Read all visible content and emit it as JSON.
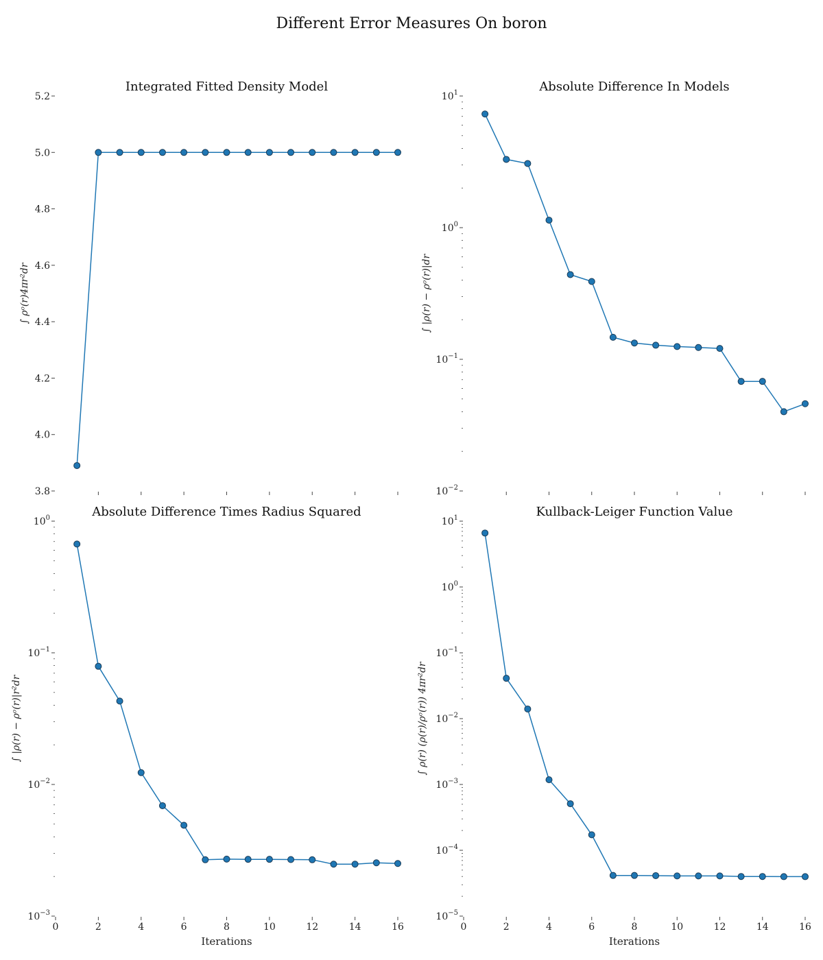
{
  "suptitle": "Different Error Measures On boron",
  "style": {
    "line_color": "#1f77b4",
    "marker_color": "#1f77b4",
    "marker_edge": "#1a3a55",
    "axis_color": "#444444"
  },
  "chart_data": [
    {
      "type": "line",
      "title": "Integrated Fitted Density Model",
      "xlabel": "",
      "ylabel": "∫ ρᵒ(r)4πr²dr",
      "yscale": "linear",
      "xlim": [
        0,
        16
      ],
      "ylim": [
        3.8,
        5.2
      ],
      "xticks": [
        2,
        4,
        6,
        8,
        10,
        12,
        14,
        16
      ],
      "xtick_labels": [],
      "yticks": [
        3.8,
        4.0,
        4.2,
        4.4,
        4.6,
        4.8,
        5.0,
        5.2
      ],
      "ytick_labels": [
        "3.8",
        "4.0",
        "4.2",
        "4.4",
        "4.6",
        "4.8",
        "5.0",
        "5.2"
      ],
      "x": [
        1,
        2,
        3,
        4,
        5,
        6,
        7,
        8,
        9,
        10,
        11,
        12,
        13,
        14,
        15,
        16
      ],
      "y": [
        3.89,
        5.0,
        5.0,
        5.0,
        5.0,
        5.0,
        5.0,
        5.0,
        5.0,
        5.0,
        5.0,
        5.0,
        5.0,
        5.0,
        5.0,
        5.0
      ]
    },
    {
      "type": "line",
      "title": "Absolute Difference In Models",
      "xlabel": "",
      "ylabel": "∫ |ρ(r) − ρᵒ(r)|dr",
      "yscale": "log",
      "xlim": [
        0,
        16
      ],
      "ylim": [
        0.01,
        10
      ],
      "xticks": [
        2,
        4,
        6,
        8,
        10,
        12,
        14,
        16
      ],
      "xtick_labels": [],
      "yticks": [
        0.01,
        0.1,
        1,
        10
      ],
      "ytick_labels": [
        {
          "base": "10",
          "exp": "−2"
        },
        {
          "base": "10",
          "exp": "−1"
        },
        {
          "base": "10",
          "exp": "0"
        },
        {
          "base": "10",
          "exp": "1"
        }
      ],
      "x": [
        1,
        2,
        3,
        4,
        5,
        6,
        7,
        8,
        9,
        10,
        11,
        12,
        13,
        14,
        15,
        16
      ],
      "y": [
        7.3,
        3.3,
        3.07,
        1.14,
        0.44,
        0.39,
        0.147,
        0.133,
        0.128,
        0.125,
        0.123,
        0.121,
        0.068,
        0.068,
        0.04,
        0.046
      ]
    },
    {
      "type": "line",
      "title": "Absolute Difference Times Radius Squared",
      "xlabel": "Iterations",
      "ylabel": "∫ |ρ(r) − ρᵒ(r)|r²dr",
      "yscale": "log",
      "xlim": [
        0,
        16
      ],
      "ylim": [
        0.001,
        1
      ],
      "xticks": [
        0,
        2,
        4,
        6,
        8,
        10,
        12,
        14,
        16
      ],
      "xtick_labels": [
        "0",
        "2",
        "4",
        "6",
        "8",
        "10",
        "12",
        "14",
        "16"
      ],
      "yticks": [
        0.001,
        0.01,
        0.1,
        1
      ],
      "ytick_labels": [
        {
          "base": "10",
          "exp": "−3"
        },
        {
          "base": "10",
          "exp": "−2"
        },
        {
          "base": "10",
          "exp": "−1"
        },
        {
          "base": "10",
          "exp": "0"
        }
      ],
      "x": [
        1,
        2,
        3,
        4,
        5,
        6,
        7,
        8,
        9,
        10,
        11,
        12,
        13,
        14,
        15,
        16
      ],
      "y": [
        0.67,
        0.079,
        0.043,
        0.0123,
        0.0069,
        0.0049,
        0.00268,
        0.00271,
        0.0027,
        0.0027,
        0.00269,
        0.00268,
        0.00248,
        0.00248,
        0.00254,
        0.00251
      ]
    },
    {
      "type": "line",
      "title": "Kullback-Leiger Function Value",
      "xlabel": "Iterations",
      "ylabel": "∫ ρ(r) (ρ(r)/ρᵒ(r)) 4πr²dr",
      "yscale": "log",
      "xlim": [
        0,
        16
      ],
      "ylim": [
        1e-05,
        10
      ],
      "xticks": [
        0,
        2,
        4,
        6,
        8,
        10,
        12,
        14,
        16
      ],
      "xtick_labels": [
        "0",
        "2",
        "4",
        "6",
        "8",
        "10",
        "12",
        "14",
        "16"
      ],
      "yticks": [
        1e-05,
        0.0001,
        0.001,
        0.01,
        0.1,
        1,
        10
      ],
      "ytick_labels": [
        {
          "base": "10",
          "exp": "−5"
        },
        {
          "base": "10",
          "exp": "−4"
        },
        {
          "base": "10",
          "exp": "−3"
        },
        {
          "base": "10",
          "exp": "−2"
        },
        {
          "base": "10",
          "exp": "−1"
        },
        {
          "base": "10",
          "exp": "0"
        },
        {
          "base": "10",
          "exp": "1"
        }
      ],
      "x": [
        1,
        2,
        3,
        4,
        5,
        6,
        7,
        8,
        9,
        10,
        11,
        12,
        13,
        14,
        15,
        16
      ],
      "y": [
        6.6,
        0.041,
        0.014,
        0.00118,
        0.00051,
        0.000172,
        4.15e-05,
        4.15e-05,
        4.12e-05,
        4.08e-05,
        4.08e-05,
        4.08e-05,
        4e-05,
        4e-05,
        3.98e-05,
        3.98e-05
      ]
    }
  ]
}
